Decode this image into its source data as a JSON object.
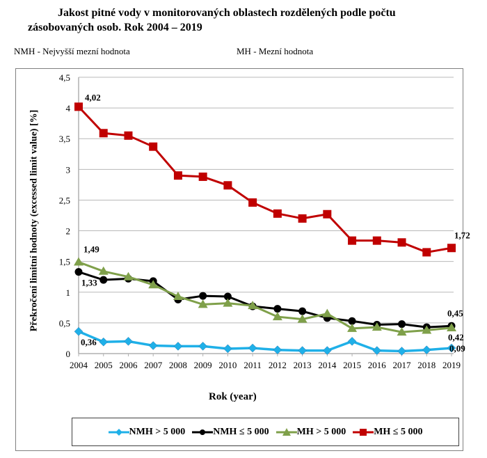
{
  "title_line1": "Jakost pitné vody v monitorovaných oblastech rozdělených podle počtu",
  "title_line2": "zásobovaných osob. Rok 2004 – 2019",
  "abbreviations": {
    "nmh": "NMH - Nejvyšší mezní hodnota",
    "mh": "MH - Mezní hodnota"
  },
  "chart_data": {
    "type": "line",
    "title": "Jakost pitné vody v monitorovaných oblastech rozdělených podle počtu zásobovaných osob. Rok 2004 – 2019",
    "xlabel": "Rok (year)",
    "ylabel": "Překročení limitní hodnoty (excessed limit value) [%]",
    "x": [
      "2004",
      "2005",
      "2006",
      "2007",
      "2008",
      "2009",
      "2010",
      "2011",
      "2012",
      "2013",
      "2014",
      "2015",
      "2016",
      "2017",
      "2018",
      "2019"
    ],
    "ylim": [
      0,
      4.5
    ],
    "yticks": [
      0,
      0.5,
      1,
      1.5,
      2,
      2.5,
      3,
      3.5,
      4,
      4.5
    ],
    "ytick_labels": [
      "0",
      "0,5",
      "1",
      "1,5",
      "2",
      "2,5",
      "3",
      "3,5",
      "4",
      "4,5"
    ],
    "grid": true,
    "legend_position": "bottom",
    "series": [
      {
        "name": "NMH > 5 000",
        "color": "#1fb0e8",
        "marker": "diamond",
        "values": [
          0.36,
          0.19,
          0.2,
          0.13,
          0.12,
          0.12,
          0.08,
          0.09,
          0.06,
          0.05,
          0.05,
          0.2,
          0.05,
          0.04,
          0.06,
          0.09
        ]
      },
      {
        "name": "NMH ≤ 5 000",
        "color": "#000000",
        "marker": "circle",
        "values": [
          1.33,
          1.2,
          1.22,
          1.18,
          0.88,
          0.94,
          0.93,
          0.77,
          0.73,
          0.69,
          0.58,
          0.53,
          0.47,
          0.48,
          0.43,
          0.45
        ]
      },
      {
        "name": "MH > 5 000",
        "color": "#7fa04a",
        "marker": "triangle",
        "values": [
          1.49,
          1.34,
          1.25,
          1.12,
          0.93,
          0.8,
          0.82,
          0.78,
          0.6,
          0.56,
          0.65,
          0.41,
          0.43,
          0.35,
          0.38,
          0.42
        ]
      },
      {
        "name": "MH ≤ 5 000",
        "color": "#c00000",
        "marker": "square",
        "values": [
          4.02,
          3.59,
          3.55,
          3.37,
          2.9,
          2.88,
          2.74,
          2.46,
          2.28,
          2.2,
          2.27,
          1.84,
          1.84,
          1.81,
          1.65,
          1.72
        ]
      }
    ],
    "annotations": [
      {
        "series": 3,
        "index": 0,
        "text": "4,02"
      },
      {
        "series": 3,
        "index": 15,
        "text": "1,72"
      },
      {
        "series": 2,
        "index": 0,
        "text": "1,49"
      },
      {
        "series": 1,
        "index": 0,
        "text": "1,33"
      },
      {
        "series": 0,
        "index": 0,
        "text": "0,36"
      },
      {
        "series": 1,
        "index": 15,
        "text": "0,45"
      },
      {
        "series": 2,
        "index": 15,
        "text": "0,42"
      },
      {
        "series": 0,
        "index": 15,
        "text": "0,09"
      }
    ]
  }
}
